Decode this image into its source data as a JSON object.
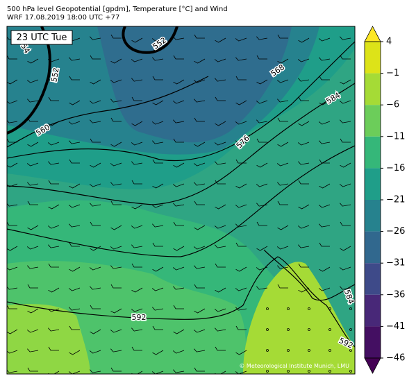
{
  "header": {
    "line1": "500 hPa level Geopotential [gpdm], Temperature [°C] and Wind",
    "line2": "WRF 17.08.2019 18:00 UTC +77"
  },
  "map": {
    "time_label": "23 UTC Tue",
    "contour_labels": [
      "54",
      "552",
      "552",
      "560",
      "568",
      "576",
      "584",
      "592",
      "584",
      "592"
    ],
    "credit": "© Meteorological Institute Munich, LMU"
  },
  "colorbar": {
    "ticks": [
      4,
      {
        "value": -1,
        "label": "−1"
      },
      {
        "value": -6,
        "label": "−6"
      },
      {
        "value": -11,
        "label": "−11"
      },
      {
        "value": -16,
        "label": "−16"
      },
      {
        "value": -21,
        "label": "−21"
      },
      {
        "value": -26,
        "label": "−26"
      },
      {
        "value": -31,
        "label": "−31"
      },
      {
        "value": -36,
        "label": "−36"
      },
      {
        "value": -41,
        "label": "−41"
      },
      {
        "value": -46,
        "label": "−46"
      }
    ],
    "colors": [
      "#fde725",
      "#dde318",
      "#a5db36",
      "#6ccd5a",
      "#35b779",
      "#1f9e89",
      "#26828e",
      "#31688e",
      "#3e4a89",
      "#482878",
      "#440f62",
      "#440154"
    ]
  }
}
